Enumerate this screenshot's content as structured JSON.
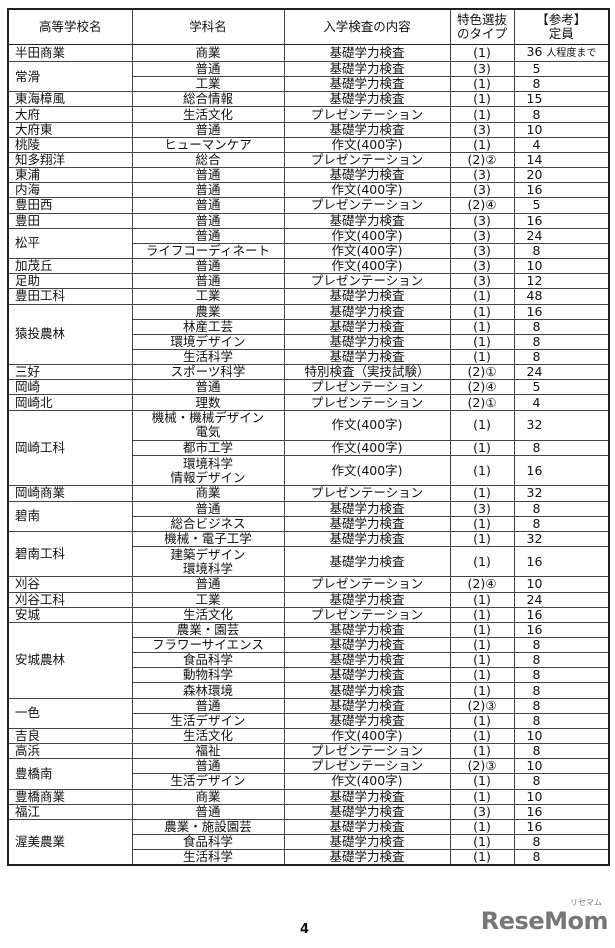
{
  "headers": {
    "school": "高等学校名",
    "dept": "学科名",
    "exam": "入学検査の内容",
    "type": [
      "特色選抜",
      "のタイプ"
    ],
    "quota": [
      "【参考】",
      "定員"
    ]
  },
  "schools": [
    {
      "name": "半田商業",
      "departments": [
        {
          "lines": [
            "商業"
          ],
          "exam": "基礎学力検査",
          "type": "(1)",
          "quota": "36",
          "note": "人程度まで"
        }
      ]
    },
    {
      "name": "常滑",
      "departments": [
        {
          "lines": [
            "普通"
          ],
          "exam": "基礎学力検査",
          "type": "(3)",
          "quota": "5"
        },
        {
          "lines": [
            "工業"
          ],
          "exam": "基礎学力検査",
          "type": "(1)",
          "quota": "8"
        }
      ]
    },
    {
      "name": "東海樟風",
      "departments": [
        {
          "lines": [
            "総合情報"
          ],
          "exam": "基礎学力検査",
          "type": "(1)",
          "quota": "15"
        }
      ]
    },
    {
      "name": "大府",
      "departments": [
        {
          "lines": [
            "生活文化"
          ],
          "exam": "プレゼンテーション",
          "type": "(1)",
          "quota": "8"
        }
      ]
    },
    {
      "name": "大府東",
      "departments": [
        {
          "lines": [
            "普通"
          ],
          "exam": "基礎学力検査",
          "type": "(3)",
          "quota": "10"
        }
      ]
    },
    {
      "name": "桃陵",
      "departments": [
        {
          "lines": [
            "ヒューマンケア"
          ],
          "exam": "作文(400字)",
          "type": "(1)",
          "quota": "4"
        }
      ]
    },
    {
      "name": "知多翔洋",
      "departments": [
        {
          "lines": [
            "総合"
          ],
          "exam": "プレゼンテーション",
          "type": "(2)②",
          "quota": "14"
        }
      ]
    },
    {
      "name": "東浦",
      "departments": [
        {
          "lines": [
            "普通"
          ],
          "exam": "基礎学力検査",
          "type": "(3)",
          "quota": "20"
        }
      ]
    },
    {
      "name": "内海",
      "departments": [
        {
          "lines": [
            "普通"
          ],
          "exam": "作文(400字)",
          "type": "(3)",
          "quota": "16"
        }
      ]
    },
    {
      "name": "豊田西",
      "departments": [
        {
          "lines": [
            "普通"
          ],
          "exam": "プレゼンテーション",
          "type": "(2)④",
          "quota": "5"
        }
      ]
    },
    {
      "name": "豊田",
      "departments": [
        {
          "lines": [
            "普通"
          ],
          "exam": "基礎学力検査",
          "type": "(3)",
          "quota": "16"
        }
      ]
    },
    {
      "name": "松平",
      "departments": [
        {
          "lines": [
            "普通"
          ],
          "exam": "作文(400字)",
          "type": "(3)",
          "quota": "24"
        },
        {
          "lines": [
            "ライフコーディネート"
          ],
          "exam": "作文(400字)",
          "type": "(3)",
          "quota": "8"
        }
      ]
    },
    {
      "name": "加茂丘",
      "departments": [
        {
          "lines": [
            "普通"
          ],
          "exam": "作文(400字)",
          "type": "(3)",
          "quota": "10"
        }
      ]
    },
    {
      "name": "足助",
      "departments": [
        {
          "lines": [
            "普通"
          ],
          "exam": "プレゼンテーション",
          "type": "(3)",
          "quota": "12"
        }
      ]
    },
    {
      "name": "豊田工科",
      "departments": [
        {
          "lines": [
            "工業"
          ],
          "exam": "基礎学力検査",
          "type": "(1)",
          "quota": "48"
        }
      ]
    },
    {
      "name": "猿投農林",
      "departments": [
        {
          "lines": [
            "農業"
          ],
          "exam": "基礎学力検査",
          "type": "(1)",
          "quota": "16"
        },
        {
          "lines": [
            "林産工芸"
          ],
          "exam": "基礎学力検査",
          "type": "(1)",
          "quota": "8"
        },
        {
          "lines": [
            "環境デザイン"
          ],
          "exam": "基礎学力検査",
          "type": "(1)",
          "quota": "8"
        },
        {
          "lines": [
            "生活科学"
          ],
          "exam": "基礎学力検査",
          "type": "(1)",
          "quota": "8"
        }
      ]
    },
    {
      "name": "三好",
      "departments": [
        {
          "lines": [
            "スポーツ科学"
          ],
          "exam": "特別検査（実技試験）",
          "type": "(2)①",
          "quota": "24"
        }
      ]
    },
    {
      "name": "岡崎",
      "departments": [
        {
          "lines": [
            "普通"
          ],
          "exam": "プレゼンテーション",
          "type": "(2)④",
          "quota": "5"
        }
      ]
    },
    {
      "name": "岡崎北",
      "departments": [
        {
          "lines": [
            "理数"
          ],
          "exam": "プレゼンテーション",
          "type": "(2)①",
          "quota": "4"
        }
      ]
    },
    {
      "name": "岡崎工科",
      "departments": [
        {
          "lines": [
            "機械・機械デザイン",
            "電気"
          ],
          "exam": "作文(400字)",
          "type": "(1)",
          "quota": "32"
        },
        {
          "lines": [
            "都市工学"
          ],
          "exam": "作文(400字)",
          "type": "(1)",
          "quota": "8"
        },
        {
          "lines": [
            "環境科学",
            "情報デザイン"
          ],
          "exam": "作文(400字)",
          "type": "(1)",
          "quota": "16"
        }
      ]
    },
    {
      "name": "岡崎商業",
      "departments": [
        {
          "lines": [
            "商業"
          ],
          "exam": "プレゼンテーション",
          "type": "(1)",
          "quota": "32"
        }
      ]
    },
    {
      "name": "碧南",
      "departments": [
        {
          "lines": [
            "普通"
          ],
          "exam": "基礎学力検査",
          "type": "(3)",
          "quota": "8"
        },
        {
          "lines": [
            "総合ビジネス"
          ],
          "exam": "基礎学力検査",
          "type": "(1)",
          "quota": "8"
        }
      ]
    },
    {
      "name": "碧南工科",
      "departments": [
        {
          "lines": [
            "機械・電子工学"
          ],
          "exam": "基礎学力検査",
          "type": "(1)",
          "quota": "32"
        },
        {
          "lines": [
            "建築デザイン",
            "環境科学"
          ],
          "exam": "基礎学力検査",
          "type": "(1)",
          "quota": "16"
        }
      ]
    },
    {
      "name": "刈谷",
      "departments": [
        {
          "lines": [
            "普通"
          ],
          "exam": "プレゼンテーション",
          "type": "(2)④",
          "quota": "10"
        }
      ]
    },
    {
      "name": "刈谷工科",
      "departments": [
        {
          "lines": [
            "工業"
          ],
          "exam": "基礎学力検査",
          "type": "(1)",
          "quota": "24"
        }
      ]
    },
    {
      "name": "安城",
      "departments": [
        {
          "lines": [
            "生活文化"
          ],
          "exam": "プレゼンテーション",
          "type": "(1)",
          "quota": "16"
        }
      ]
    },
    {
      "name": "安城農林",
      "departments": [
        {
          "lines": [
            "農業・園芸"
          ],
          "exam": "基礎学力検査",
          "type": "(1)",
          "quota": "16"
        },
        {
          "lines": [
            "フラワーサイエンス"
          ],
          "exam": "基礎学力検査",
          "type": "(1)",
          "quota": "8"
        },
        {
          "lines": [
            "食品科学"
          ],
          "exam": "基礎学力検査",
          "type": "(1)",
          "quota": "8"
        },
        {
          "lines": [
            "動物科学"
          ],
          "exam": "基礎学力検査",
          "type": "(1)",
          "quota": "8"
        },
        {
          "lines": [
            "森林環境"
          ],
          "exam": "基礎学力検査",
          "type": "(1)",
          "quota": "8"
        }
      ]
    },
    {
      "name": "一色",
      "departments": [
        {
          "lines": [
            "普通"
          ],
          "exam": "基礎学力検査",
          "type": "(2)③",
          "quota": "8"
        },
        {
          "lines": [
            "生活デザイン"
          ],
          "exam": "基礎学力検査",
          "type": "(1)",
          "quota": "8"
        }
      ]
    },
    {
      "name": "吉良",
      "departments": [
        {
          "lines": [
            "生活文化"
          ],
          "exam": "作文(400字)",
          "type": "(1)",
          "quota": "10"
        }
      ]
    },
    {
      "name": "高浜",
      "departments": [
        {
          "lines": [
            "福祉"
          ],
          "exam": "プレゼンテーション",
          "type": "(1)",
          "quota": "8"
        }
      ]
    },
    {
      "name": "豊橋南",
      "departments": [
        {
          "lines": [
            "普通"
          ],
          "exam": "プレゼンテーション",
          "type": "(2)③",
          "quota": "10"
        },
        {
          "lines": [
            "生活デザイン"
          ],
          "exam": "作文(400字)",
          "type": "(1)",
          "quota": "8"
        }
      ]
    },
    {
      "name": "豊橋商業",
      "departments": [
        {
          "lines": [
            "商業"
          ],
          "exam": "基礎学力検査",
          "type": "(1)",
          "quota": "10"
        }
      ]
    },
    {
      "name": "福江",
      "departments": [
        {
          "lines": [
            "普通"
          ],
          "exam": "基礎学力検査",
          "type": "(3)",
          "quota": "16"
        }
      ]
    },
    {
      "name": "渥美農業",
      "departments": [
        {
          "lines": [
            "農業・施設園芸"
          ],
          "exam": "基礎学力検査",
          "type": "(1)",
          "quota": "16"
        },
        {
          "lines": [
            "食品科学"
          ],
          "exam": "基礎学力検査",
          "type": "(1)",
          "quota": "8"
        },
        {
          "lines": [
            "生活科学"
          ],
          "exam": "基礎学力検査",
          "type": "(1)",
          "quota": "8"
        }
      ]
    }
  ],
  "footer": {
    "page_number": "4",
    "logo_text": "ReseMom",
    "logo_ruby": "リセマム"
  }
}
